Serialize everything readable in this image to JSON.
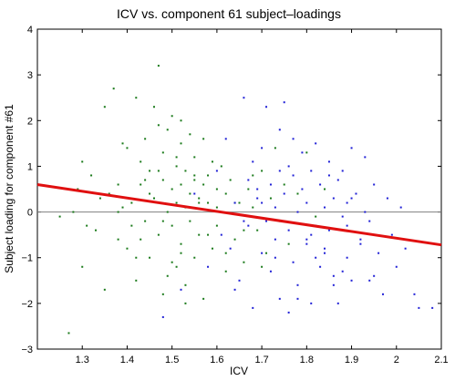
{
  "chart_data": {
    "type": "scatter",
    "title": "ICV vs. component 61 subject–loadings",
    "xlabel": "ICV",
    "ylabel": "Subject loading for component #61",
    "xlim": [
      1.2,
      2.1
    ],
    "ylim": [
      -3,
      4
    ],
    "xticks": [
      "1.3",
      "1.4",
      "1.5",
      "1.6",
      "1.7",
      "1.8",
      "1.9",
      "2",
      "2.1"
    ],
    "yticks": [
      "−3",
      "−2",
      "−1",
      "0",
      "1",
      "2",
      "3",
      "4"
    ],
    "grid": false,
    "zero_line": 0,
    "colors": {
      "group1": "#1a7a1a",
      "group2": "#1f1fd6",
      "fit": "#e01010",
      "zero": "#808080"
    },
    "fit_line": {
      "x": [
        1.2,
        2.1
      ],
      "y": [
        0.6,
        -0.72
      ]
    },
    "series": [
      {
        "key": "group1",
        "x": [
          1.25,
          1.27,
          1.29,
          1.3,
          1.3,
          1.32,
          1.33,
          1.34,
          1.35,
          1.36,
          1.37,
          1.38,
          1.38,
          1.39,
          1.4,
          1.4,
          1.41,
          1.42,
          1.42,
          1.43,
          1.43,
          1.44,
          1.44,
          1.45,
          1.45,
          1.46,
          1.46,
          1.47,
          1.47,
          1.48,
          1.48,
          1.48,
          1.49,
          1.49,
          1.5,
          1.5,
          1.5,
          1.51,
          1.51,
          1.51,
          1.52,
          1.52,
          1.52,
          1.53,
          1.53,
          1.53,
          1.54,
          1.54,
          1.55,
          1.55,
          1.55,
          1.56,
          1.56,
          1.57,
          1.57,
          1.58,
          1.58,
          1.59,
          1.59,
          1.6,
          1.6,
          1.61,
          1.61,
          1.62,
          1.62,
          1.63,
          1.64,
          1.65,
          1.66,
          1.67,
          1.68,
          1.69,
          1.7,
          1.71,
          1.72,
          1.73,
          1.74,
          1.75,
          1.76,
          1.78,
          1.8,
          1.82,
          1.84,
          1.38,
          1.41,
          1.45,
          1.47,
          1.49,
          1.52,
          1.54,
          1.56,
          1.58,
          1.44,
          1.48,
          1.51,
          1.53,
          1.46,
          1.5,
          1.55,
          1.57,
          1.6,
          1.43,
          1.47,
          1.52,
          1.35,
          1.39,
          1.42,
          1.31,
          1.28,
          1.62,
          1.64,
          1.66,
          1.68,
          1.7
        ],
        "y": [
          -0.1,
          -2.65,
          0.5,
          -1.2,
          1.1,
          0.8,
          -0.4,
          0.3,
          2.3,
          0.4,
          2.7,
          -0.6,
          0.6,
          0.1,
          1.4,
          -0.8,
          0.2,
          2.5,
          -1.5,
          0.6,
          1.1,
          -0.2,
          1.6,
          0.9,
          -1.0,
          2.3,
          0.3,
          3.2,
          -0.5,
          0.7,
          1.3,
          -1.8,
          0.0,
          1.8,
          -0.3,
          0.5,
          2.1,
          1.0,
          -1.2,
          0.2,
          0.6,
          -0.7,
          1.5,
          0.1,
          -1.6,
          0.9,
          0.4,
          -0.2,
          1.2,
          -1.0,
          0.7,
          0.3,
          -0.5,
          1.6,
          -1.9,
          0.2,
          0.8,
          -0.8,
          1.1,
          0.5,
          -0.3,
          0.0,
          1.0,
          -1.3,
          0.4,
          0.7,
          -0.6,
          0.2,
          -1.1,
          0.5,
          0.1,
          -0.4,
          0.9,
          -0.9,
          0.3,
          1.4,
          -0.2,
          0.6,
          -0.7,
          0.4,
          1.3,
          -0.1,
          0.5,
          0.0,
          -0.3,
          0.4,
          1.9,
          -1.4,
          -0.9,
          1.7,
          0.2,
          -0.5,
          0.7,
          -0.2,
          1.2,
          -2.0,
          0.3,
          -1.1,
          0.8,
          0.6,
          0.1,
          -0.6,
          0.9,
          2.0,
          -1.7,
          1.5,
          -1.0,
          -0.3,
          0.0,
          -0.9,
          0.2,
          -0.4,
          0.8,
          -1.2
        ]
      },
      {
        "key": "group2",
        "x": [
          1.48,
          1.52,
          1.55,
          1.58,
          1.6,
          1.61,
          1.62,
          1.63,
          1.64,
          1.65,
          1.66,
          1.67,
          1.67,
          1.68,
          1.68,
          1.69,
          1.7,
          1.7,
          1.71,
          1.71,
          1.72,
          1.72,
          1.73,
          1.73,
          1.74,
          1.74,
          1.75,
          1.75,
          1.76,
          1.76,
          1.77,
          1.77,
          1.78,
          1.78,
          1.79,
          1.79,
          1.8,
          1.8,
          1.81,
          1.81,
          1.82,
          1.82,
          1.83,
          1.83,
          1.84,
          1.84,
          1.85,
          1.85,
          1.86,
          1.86,
          1.87,
          1.87,
          1.88,
          1.88,
          1.89,
          1.89,
          1.9,
          1.9,
          1.91,
          1.92,
          1.93,
          1.94,
          1.95,
          1.95,
          1.96,
          1.97,
          1.98,
          1.99,
          2.0,
          2.01,
          2.02,
          2.04,
          2.05,
          2.08,
          1.66,
          1.69,
          1.73,
          1.77,
          1.81,
          1.85,
          1.89,
          1.93,
          1.64,
          1.7,
          1.76,
          1.82,
          1.88,
          1.94,
          1.74,
          1.8,
          1.86,
          1.92,
          1.68,
          1.78,
          1.84,
          1.9
        ],
        "y": [
          -2.3,
          -1.7,
          0.4,
          -1.2,
          0.9,
          -0.5,
          1.6,
          -0.8,
          0.2,
          -1.5,
          2.5,
          0.7,
          -0.3,
          1.1,
          -2.1,
          0.3,
          -0.9,
          1.4,
          -0.2,
          2.3,
          0.6,
          -1.3,
          0.1,
          -0.6,
          1.8,
          -1.9,
          0.4,
          2.4,
          -0.4,
          1.0,
          -1.1,
          0.8,
          0.0,
          -1.6,
          0.5,
          1.3,
          -0.7,
          0.2,
          -2.0,
          0.9,
          -0.3,
          1.5,
          -1.2,
          0.6,
          0.1,
          -0.9,
          1.1,
          -0.4,
          -1.4,
          0.3,
          0.7,
          -2.0,
          -0.1,
          0.9,
          -1.0,
          0.2,
          1.4,
          -1.5,
          0.4,
          -0.6,
          1.2,
          -0.2,
          -1.4,
          0.6,
          -0.9,
          -1.8,
          0.3,
          -0.5,
          -1.2,
          0.1,
          -0.8,
          -1.8,
          -2.1,
          -2.1,
          -0.2,
          0.5,
          -1.0,
          1.6,
          -0.5,
          0.8,
          -0.3,
          0.0,
          -1.7,
          0.2,
          -2.2,
          -1.0,
          -1.3,
          -1.5,
          0.9,
          -0.6,
          -1.6,
          -0.7,
          -0.1,
          -1.9,
          -0.8,
          0.3
        ]
      }
    ]
  }
}
